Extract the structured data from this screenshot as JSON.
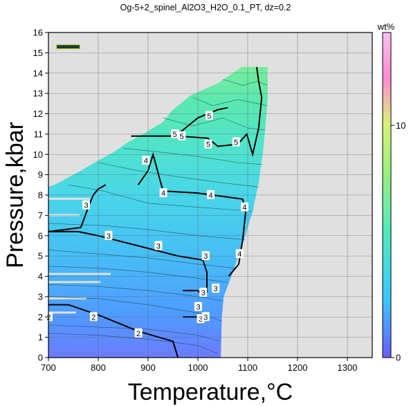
{
  "chart_data": {
    "type": "heatmap",
    "title": "Og-5+2_spinel_Al2O3_H2O_0.1_PT, dz=0.2",
    "xlabel": "Temperature,°C",
    "ylabel": "Pressure,kbar",
    "xlim": [
      700,
      1350
    ],
    "ylim": [
      0,
      16
    ],
    "x_ticks": [
      "700",
      "800",
      "900",
      "1000",
      "1100",
      "1200",
      "1300"
    ],
    "y_ticks": [
      "0",
      "1",
      "2",
      "3",
      "4",
      "5",
      "6",
      "7",
      "8",
      "9",
      "10",
      "11",
      "12",
      "13",
      "14",
      "15",
      "16"
    ],
    "grid": true,
    "colorbar": {
      "label": "wt%",
      "range": [
        0,
        14
      ],
      "ticks": [
        "0",
        "10"
      ],
      "colors": [
        "#6a5cff",
        "#3ac6ff",
        "#4fe8c0",
        "#9ef07a",
        "#d8f27a",
        "#ff8ad0",
        "#f7c2f0"
      ]
    },
    "field_value_wt_pct": [
      {
        "T": 720,
        "P": 0.5,
        "value": 1.4
      },
      {
        "T": 800,
        "P": 2.5,
        "value": 2.0
      },
      {
        "T": 720,
        "P": 5.0,
        "value": 3.0
      },
      {
        "T": 900,
        "P": 6.0,
        "value": 3.3
      },
      {
        "T": 1000,
        "P": 8.0,
        "value": 4.0
      },
      {
        "T": 1050,
        "P": 11.5,
        "value": 5.3
      },
      {
        "T": 1110,
        "P": 14.0,
        "value": 6.0
      }
    ],
    "contour_labels": [
      {
        "level": "2",
        "T": 700,
        "P": 2.0
      },
      {
        "level": "2",
        "T": 790,
        "P": 2.0
      },
      {
        "level": "2",
        "T": 880,
        "P": 1.2
      },
      {
        "level": "3",
        "T": 775,
        "P": 7.5
      },
      {
        "level": "3",
        "T": 820,
        "P": 6.0
      },
      {
        "level": "3",
        "T": 920,
        "P": 5.5
      },
      {
        "level": "3",
        "T": 1015,
        "P": 5.0
      },
      {
        "level": "3",
        "T": 1010,
        "P": 3.2
      },
      {
        "level": "3",
        "T": 1035,
        "P": 3.4
      },
      {
        "level": "3",
        "T": 1000,
        "P": 2.5
      },
      {
        "level": "3",
        "T": 1005,
        "P": 1.9
      },
      {
        "level": "3",
        "T": 1015,
        "P": 2.0
      },
      {
        "level": "4",
        "T": 895,
        "P": 9.7
      },
      {
        "level": "4",
        "T": 930,
        "P": 8.1
      },
      {
        "level": "4",
        "T": 1025,
        "P": 8.0
      },
      {
        "level": "4",
        "T": 1093,
        "P": 7.4
      },
      {
        "level": "4",
        "T": 1083,
        "P": 5.1
      },
      {
        "level": "5",
        "T": 953,
        "P": 11.0
      },
      {
        "level": "5",
        "T": 967,
        "P": 10.9
      },
      {
        "level": "5",
        "T": 1020,
        "P": 10.5
      },
      {
        "level": "5",
        "T": 1076,
        "P": 10.6
      },
      {
        "level": "5",
        "T": 1022,
        "P": 11.9
      }
    ]
  }
}
